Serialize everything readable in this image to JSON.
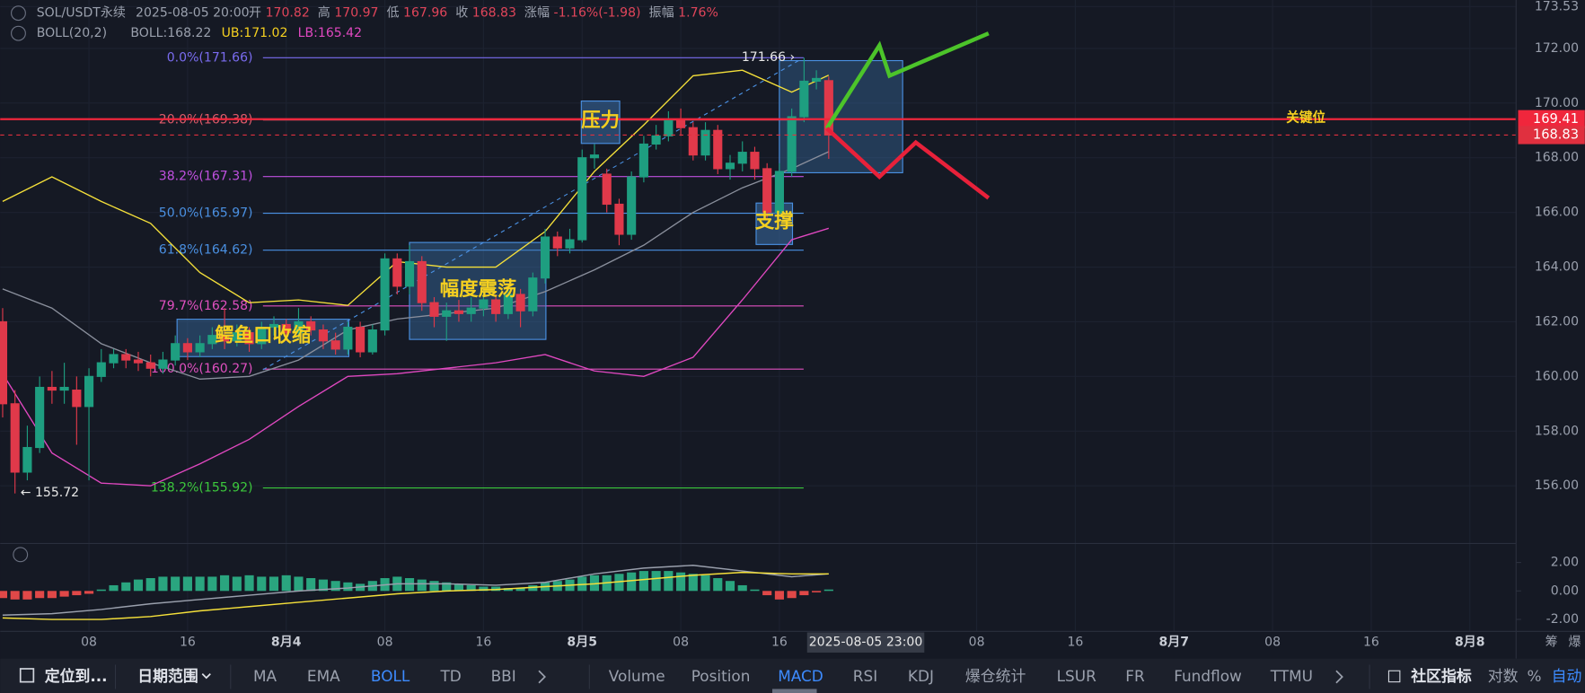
{
  "header": {
    "symbol": "SOL/USDT永续",
    "time": "2025-08-05 20:00",
    "fields": [
      {
        "label": "开",
        "value": "170.82"
      },
      {
        "label": "高",
        "value": "170.97"
      },
      {
        "label": "低",
        "value": "167.96"
      },
      {
        "label": "收",
        "value": "168.83"
      },
      {
        "label": "涨幅",
        "value": "-1.16%(-1.98)"
      },
      {
        "label": "振幅",
        "value": "1.76%"
      }
    ],
    "indicator": "BOLL(20,2)",
    "indicator_values": [
      {
        "text": "BOLL:168.22",
        "color": "#9aa0ad"
      },
      {
        "text": "UB:171.02",
        "color": "#f5d020"
      },
      {
        "text": "LB:165.42",
        "color": "#e048c0"
      }
    ]
  },
  "chart_data": [
    {
      "type": "candlestick",
      "up_color": "#1e9e80",
      "down_color": "#e0394a",
      "x": [
        -23,
        -22,
        -21,
        -20,
        -19,
        -18,
        -17,
        -16,
        -15,
        -14,
        -13,
        -12,
        -11,
        -10,
        -9,
        -8,
        -7,
        -6,
        -5,
        -4,
        -3,
        -2,
        -1,
        0,
        1,
        2,
        3,
        4,
        5,
        6,
        7,
        8,
        9,
        10,
        11,
        12,
        13,
        14,
        15,
        16,
        17,
        18,
        19,
        20,
        21,
        22,
        23,
        24,
        25,
        26,
        27,
        28,
        29,
        30,
        31,
        32,
        33,
        34,
        35,
        36,
        37,
        38,
        39,
        40,
        41,
        42,
        43,
        44
      ],
      "open": [
        162.0,
        159.0,
        156.5,
        157.4,
        159.6,
        159.5,
        159.5,
        158.9,
        160.0,
        160.5,
        160.8,
        160.6,
        160.5,
        160.3,
        160.6,
        161.2,
        160.9,
        161.2,
        161.5,
        161.3,
        161.6,
        161.2,
        161.8,
        161.9,
        161.6,
        162.0,
        161.7,
        161.3,
        161.0,
        161.8,
        160.9,
        161.7,
        164.3,
        163.3,
        164.2,
        162.7,
        162.2,
        162.4,
        162.3,
        162.5,
        162.8,
        162.3,
        163.0,
        162.4,
        163.6,
        165.1,
        164.7,
        165.0,
        168.0,
        167.4,
        166.3,
        165.2,
        167.3,
        168.5,
        168.8,
        169.4,
        169.1,
        168.1,
        169.0,
        167.6,
        167.8,
        168.2,
        167.6,
        166.0,
        167.5,
        169.5,
        170.8,
        170.82
      ],
      "high": [
        162.5,
        159.5,
        158.2,
        160.0,
        160.2,
        160.5,
        160.0,
        160.3,
        161.0,
        161.0,
        161.0,
        160.9,
        160.8,
        160.9,
        161.5,
        161.4,
        161.5,
        161.8,
        162.5,
        161.9,
        161.8,
        162.0,
        162.2,
        162.1,
        162.5,
        162.2,
        161.9,
        161.6,
        162.0,
        162.0,
        161.9,
        164.5,
        164.5,
        164.8,
        164.4,
        162.9,
        162.7,
        162.8,
        162.9,
        163.1,
        163.0,
        163.3,
        163.2,
        163.8,
        165.4,
        165.3,
        165.4,
        168.3,
        168.5,
        167.6,
        166.5,
        167.5,
        168.8,
        169.2,
        169.7,
        169.8,
        169.3,
        169.3,
        169.2,
        168.1,
        168.6,
        168.4,
        167.8,
        167.8,
        169.8,
        171.66,
        171.2,
        170.97
      ],
      "low": [
        158.5,
        155.72,
        156.2,
        157.2,
        159.0,
        159.0,
        157.5,
        156.2,
        159.8,
        160.3,
        160.3,
        160.2,
        160.0,
        160.1,
        160.4,
        160.6,
        160.7,
        161.0,
        161.0,
        161.1,
        160.9,
        161.0,
        161.5,
        161.3,
        161.4,
        161.5,
        161.0,
        160.8,
        160.8,
        160.7,
        160.8,
        161.5,
        163.0,
        163.0,
        162.4,
        161.8,
        161.3,
        162.0,
        162.0,
        162.2,
        162.0,
        162.1,
        161.8,
        162.2,
        163.4,
        164.4,
        164.5,
        164.9,
        167.6,
        166.0,
        164.8,
        165.0,
        167.1,
        168.3,
        168.6,
        168.8,
        167.9,
        167.9,
        167.4,
        167.2,
        167.5,
        167.2,
        165.8,
        165.9,
        167.3,
        169.3,
        170.5,
        167.96
      ],
      "close": [
        159.0,
        156.5,
        157.4,
        159.6,
        159.5,
        159.6,
        158.9,
        160.0,
        160.5,
        160.8,
        160.6,
        160.5,
        160.3,
        160.6,
        161.2,
        160.9,
        161.2,
        161.5,
        161.3,
        161.6,
        161.2,
        161.8,
        161.9,
        161.6,
        162.0,
        161.7,
        161.3,
        161.0,
        161.8,
        160.9,
        161.7,
        164.3,
        163.3,
        164.2,
        162.7,
        162.2,
        162.4,
        162.3,
        162.5,
        162.8,
        162.3,
        163.0,
        162.4,
        163.6,
        165.1,
        164.7,
        165.0,
        168.0,
        168.1,
        166.3,
        165.2,
        167.3,
        168.5,
        168.8,
        169.4,
        169.1,
        168.1,
        169.0,
        167.6,
        167.8,
        168.2,
        167.6,
        166.0,
        167.5,
        169.5,
        170.8,
        170.9,
        168.83
      ],
      "bands": {
        "x": [
          -23,
          -19,
          -15,
          -11,
          -7,
          -3,
          1,
          5,
          9,
          13,
          17,
          21,
          25,
          29,
          33,
          37,
          41,
          44
        ],
        "series": [
          {
            "name": "UB",
            "color": "#f5e03a",
            "values": [
              166.4,
              167.3,
              166.4,
              165.6,
              163.8,
              162.7,
              162.8,
              162.6,
              164.2,
              164.0,
              164.0,
              165.3,
              167.5,
              169.2,
              171.0,
              171.2,
              170.4,
              171.02
            ]
          },
          {
            "name": "BOLL",
            "color": "#8a8f9c",
            "values": [
              163.2,
              162.5,
              161.2,
              160.5,
              159.9,
              160.0,
              160.6,
              161.7,
              162.1,
              162.3,
              162.5,
              163.1,
              163.9,
              164.8,
              166.0,
              166.9,
              167.6,
              168.22
            ]
          },
          {
            "name": "LB",
            "color": "#e048c0",
            "values": [
              160.1,
              157.2,
              156.1,
              156.0,
              156.8,
              157.7,
              158.9,
              160.0,
              160.1,
              160.3,
              160.5,
              160.8,
              160.2,
              160.0,
              160.7,
              162.8,
              165.0,
              165.42
            ]
          }
        ]
      },
      "xlim": [
        -23.2,
        99.75
      ],
      "ylim": [
        154.0,
        173.77
      ],
      "xticks": [
        {
          "value": -16,
          "label": "08"
        },
        {
          "value": -8,
          "label": "16"
        },
        {
          "value": 0,
          "label": "8月4"
        },
        {
          "value": 8,
          "label": "08"
        },
        {
          "value": 16,
          "label": "16"
        },
        {
          "value": 24,
          "label": "8月5"
        },
        {
          "value": 32,
          "label": "08"
        },
        {
          "value": 40,
          "label": "16"
        },
        {
          "value": 56,
          "label": "08"
        },
        {
          "value": 64,
          "label": "16"
        },
        {
          "value": 72,
          "label": "8月7"
        },
        {
          "value": 80,
          "label": "08"
        },
        {
          "value": 88,
          "label": "16"
        },
        {
          "value": 96,
          "label": "8月8"
        }
      ],
      "yticks": [
        {
          "value": 156,
          "label": "156.00"
        },
        {
          "value": 158,
          "label": "158.00"
        },
        {
          "value": 160,
          "label": "160.00"
        },
        {
          "value": 162,
          "label": "162.00"
        },
        {
          "value": 164,
          "label": "164.00"
        },
        {
          "value": 166,
          "label": "166.00"
        },
        {
          "value": 168,
          "label": "168.00"
        },
        {
          "value": 170,
          "label": "170.00"
        },
        {
          "value": 172,
          "label": "172.00"
        },
        {
          "value": 173.53,
          "label": "173.53"
        }
      ],
      "grid": true,
      "fib_levels": [
        {
          "label": "0.0%(171.66)",
          "value": 171.66,
          "color": "#7a6cf0"
        },
        {
          "label": "20.0%(169.38)",
          "value": 169.38,
          "color": "#e05a6a"
        },
        {
          "label": "38.2%(167.31)",
          "value": 167.31,
          "color": "#c050e0"
        },
        {
          "label": "50.0%(165.97)",
          "value": 165.97,
          "color": "#4a90e2"
        },
        {
          "label": "61.8%(164.62)",
          "value": 164.62,
          "color": "#4a90e2"
        },
        {
          "label": "79.7%(162.58)",
          "value": 162.58,
          "color": "#e050c0"
        },
        {
          "label": "100.0%(160.27)",
          "value": 160.27,
          "color": "#e050c0"
        },
        {
          "label": "138.2%(155.92)",
          "value": 155.92,
          "color": "#3cc83c"
        }
      ],
      "key_level": {
        "value": 169.41,
        "label": "169.41",
        "text": "关键位",
        "color": "#f0263c"
      },
      "last_price": {
        "value": 168.83,
        "label": "168.83",
        "color": "#e0303f"
      },
      "crosshair": {
        "x": 47,
        "label": "2025-08-05 23:00"
      },
      "high_label": "171.66 ›",
      "low_label": "← 155.72",
      "annotations": [
        "鳄鱼口收缩",
        "幅度震荡",
        "压力",
        "支撑"
      ],
      "axis_extras": [
        "筹",
        "爆"
      ]
    },
    {
      "type": "macd",
      "up_color": "#2aa57f",
      "down_color": "#e04848",
      "x": [
        -23,
        -22,
        -21,
        -20,
        -19,
        -18,
        -17,
        -16,
        -15,
        -14,
        -13,
        -12,
        -11,
        -10,
        -9,
        -8,
        -7,
        -6,
        -5,
        -4,
        -3,
        -2,
        -1,
        0,
        1,
        2,
        3,
        4,
        5,
        6,
        7,
        8,
        9,
        10,
        11,
        12,
        13,
        14,
        15,
        16,
        17,
        18,
        19,
        20,
        21,
        22,
        23,
        24,
        25,
        26,
        27,
        28,
        29,
        30,
        31,
        32,
        33,
        34,
        35,
        36,
        37,
        38,
        39,
        40,
        41,
        42,
        43,
        44
      ],
      "values": [
        -0.5,
        -0.6,
        -0.6,
        -0.5,
        -0.5,
        -0.4,
        -0.3,
        -0.2,
        0.1,
        0.4,
        0.6,
        0.8,
        0.9,
        1.0,
        1.0,
        1.0,
        1.0,
        1.0,
        1.1,
        1.0,
        1.1,
        1.0,
        1.0,
        1.1,
        1.0,
        0.9,
        0.8,
        0.7,
        0.6,
        0.5,
        0.7,
        0.9,
        1.0,
        0.9,
        0.8,
        0.7,
        0.6,
        0.5,
        0.4,
        0.3,
        0.3,
        0.2,
        0.2,
        0.4,
        0.6,
        0.7,
        0.8,
        1.0,
        1.1,
        1.1,
        1.2,
        1.3,
        1.4,
        1.4,
        1.4,
        1.3,
        1.2,
        1.1,
        0.9,
        0.7,
        0.4,
        0.1,
        -0.3,
        -0.6,
        -0.5,
        -0.3,
        -0.1,
        0.1
      ],
      "lines": {
        "x": [
          -23,
          -19,
          -15,
          -11,
          -7,
          -3,
          1,
          5,
          9,
          13,
          17,
          21,
          25,
          29,
          33,
          37,
          41,
          44
        ],
        "series": [
          {
            "name": "DIF",
            "color": "#9aa0ad",
            "values": [
              -1.7,
              -1.6,
              -1.3,
              -0.9,
              -0.6,
              -0.3,
              0.0,
              0.2,
              0.5,
              0.5,
              0.4,
              0.6,
              1.2,
              1.6,
              1.8,
              1.4,
              1.0,
              1.2
            ]
          },
          {
            "name": "DEA",
            "color": "#f5e03a",
            "values": [
              -1.9,
              -2.0,
              -2.0,
              -1.8,
              -1.4,
              -1.1,
              -0.8,
              -0.5,
              -0.2,
              0.0,
              0.1,
              0.3,
              0.5,
              0.8,
              1.1,
              1.3,
              1.2,
              1.2
            ]
          }
        ]
      },
      "ylim": [
        -2.84,
        3.19
      ],
      "yticks": [
        {
          "value": -2,
          "label": "-2.00"
        },
        {
          "value": 0,
          "label": "0.00"
        },
        {
          "value": 2,
          "label": "2.00"
        }
      ]
    }
  ],
  "toolbar": {
    "locate": "定位到...",
    "date_range": "日期范围",
    "main_indicators": [
      {
        "text": "MA"
      },
      {
        "text": "EMA"
      },
      {
        "text": "BOLL",
        "active": true
      },
      {
        "text": "TD"
      },
      {
        "text": "BBI"
      }
    ],
    "sub_indicators": [
      {
        "text": "Volume"
      },
      {
        "text": "Position"
      },
      {
        "text": "MACD",
        "active": true
      },
      {
        "text": "RSI"
      },
      {
        "text": "KDJ"
      },
      {
        "text": "爆仓统计"
      },
      {
        "text": "LSUR"
      },
      {
        "text": "FR"
      },
      {
        "text": "Fundflow"
      },
      {
        "text": "TTMU"
      }
    ],
    "community": "社区指标",
    "options": [
      {
        "text": "对数"
      },
      {
        "text": "%"
      },
      {
        "text": "自动",
        "active": true
      }
    ]
  }
}
